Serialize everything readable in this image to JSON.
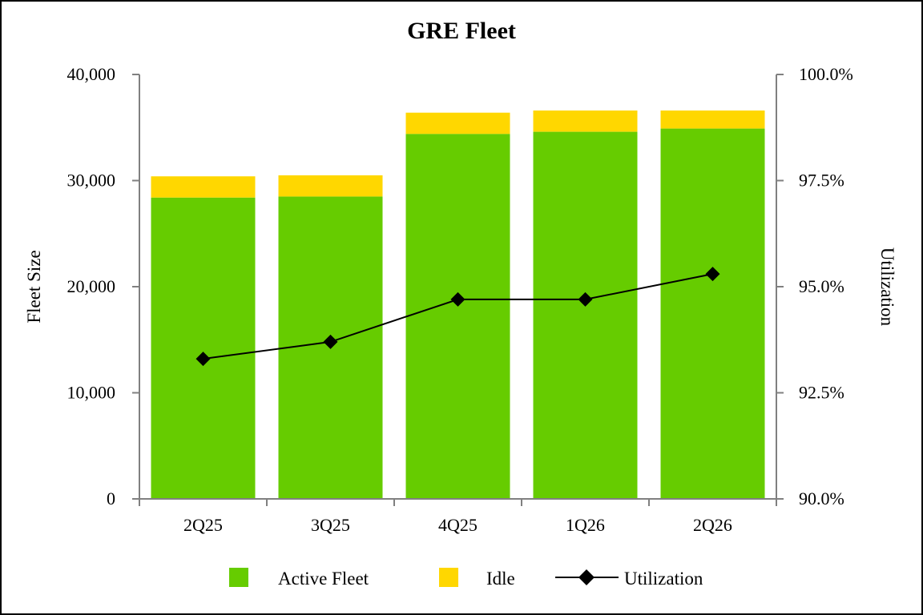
{
  "chart_data": {
    "type": "bar",
    "title": "GRE Fleet",
    "categories": [
      "2Q25",
      "3Q25",
      "4Q25",
      "1Q26",
      "2Q26"
    ],
    "series": [
      {
        "name": "Active Fleet",
        "kind": "stacked-bar",
        "axis": "left",
        "color": "#66CC00",
        "values": [
          28400,
          28500,
          34400,
          34600,
          34900
        ]
      },
      {
        "name": "Idle",
        "kind": "stacked-bar",
        "axis": "left",
        "color": "#FFD700",
        "values": [
          2000,
          2000,
          2000,
          2000,
          1700
        ]
      },
      {
        "name": "Utilization",
        "kind": "line",
        "axis": "right",
        "color": "#000000",
        "marker": "diamond",
        "values": [
          93.3,
          93.7,
          94.7,
          94.7,
          95.3
        ]
      }
    ],
    "ylabel": "Fleet Size",
    "ylim": [
      0,
      40000
    ],
    "yticks": [
      "0",
      "10,000",
      "20,000",
      "30,000",
      "40,000"
    ],
    "ytick_values": [
      0,
      10000,
      20000,
      30000,
      40000
    ],
    "y2label": "Utilization",
    "y2lim": [
      90,
      100
    ],
    "y2ticks": [
      "90.0%",
      "92.5%",
      "95.0%",
      "97.5%",
      "100.0%"
    ],
    "y2tick_values": [
      90,
      92.5,
      95,
      97.5,
      100
    ],
    "grid": false,
    "legend_position": "bottom"
  }
}
